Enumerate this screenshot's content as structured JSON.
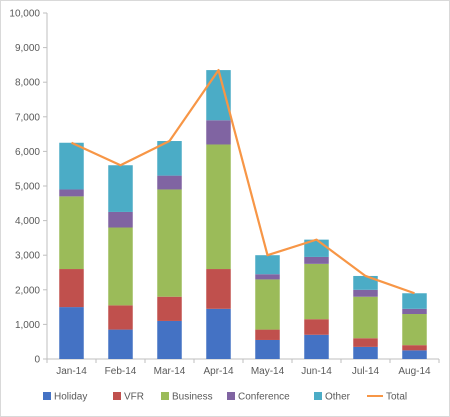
{
  "chart_data": {
    "type": "bar",
    "stacked": true,
    "categories": [
      "Jan-14",
      "Feb-14",
      "Mar-14",
      "Apr-14",
      "May-14",
      "Jun-14",
      "Jul-14",
      "Aug-14"
    ],
    "series": [
      {
        "name": "Holiday",
        "color": "#4472c4",
        "values": [
          1500,
          850,
          1100,
          1450,
          550,
          700,
          350,
          250
        ]
      },
      {
        "name": "VFR",
        "color": "#c0504d",
        "values": [
          1100,
          700,
          700,
          1150,
          300,
          450,
          250,
          150
        ]
      },
      {
        "name": "Business",
        "color": "#9bbb59",
        "values": [
          2100,
          2250,
          3100,
          3600,
          1450,
          1600,
          1200,
          900
        ]
      },
      {
        "name": "Conference",
        "color": "#8064a2",
        "values": [
          200,
          450,
          400,
          700,
          150,
          200,
          200,
          150
        ]
      },
      {
        "name": "Other",
        "color": "#4bacc6",
        "values": [
          1350,
          1350,
          1000,
          1450,
          550,
          500,
          400,
          450
        ]
      }
    ],
    "line_series": {
      "name": "Total",
      "color": "#f79646",
      "values": [
        6250,
        5600,
        6300,
        8350,
        3000,
        3450,
        2400,
        1900
      ]
    },
    "ylim": [
      0,
      10000
    ],
    "yticks": [
      "0",
      "1,000",
      "2,000",
      "3,000",
      "4,000",
      "5,000",
      "6,000",
      "7,000",
      "8,000",
      "9,000",
      "10,000"
    ],
    "title": "",
    "xlabel": "",
    "ylabel": "",
    "grid": false,
    "legend_position": "bottom"
  }
}
